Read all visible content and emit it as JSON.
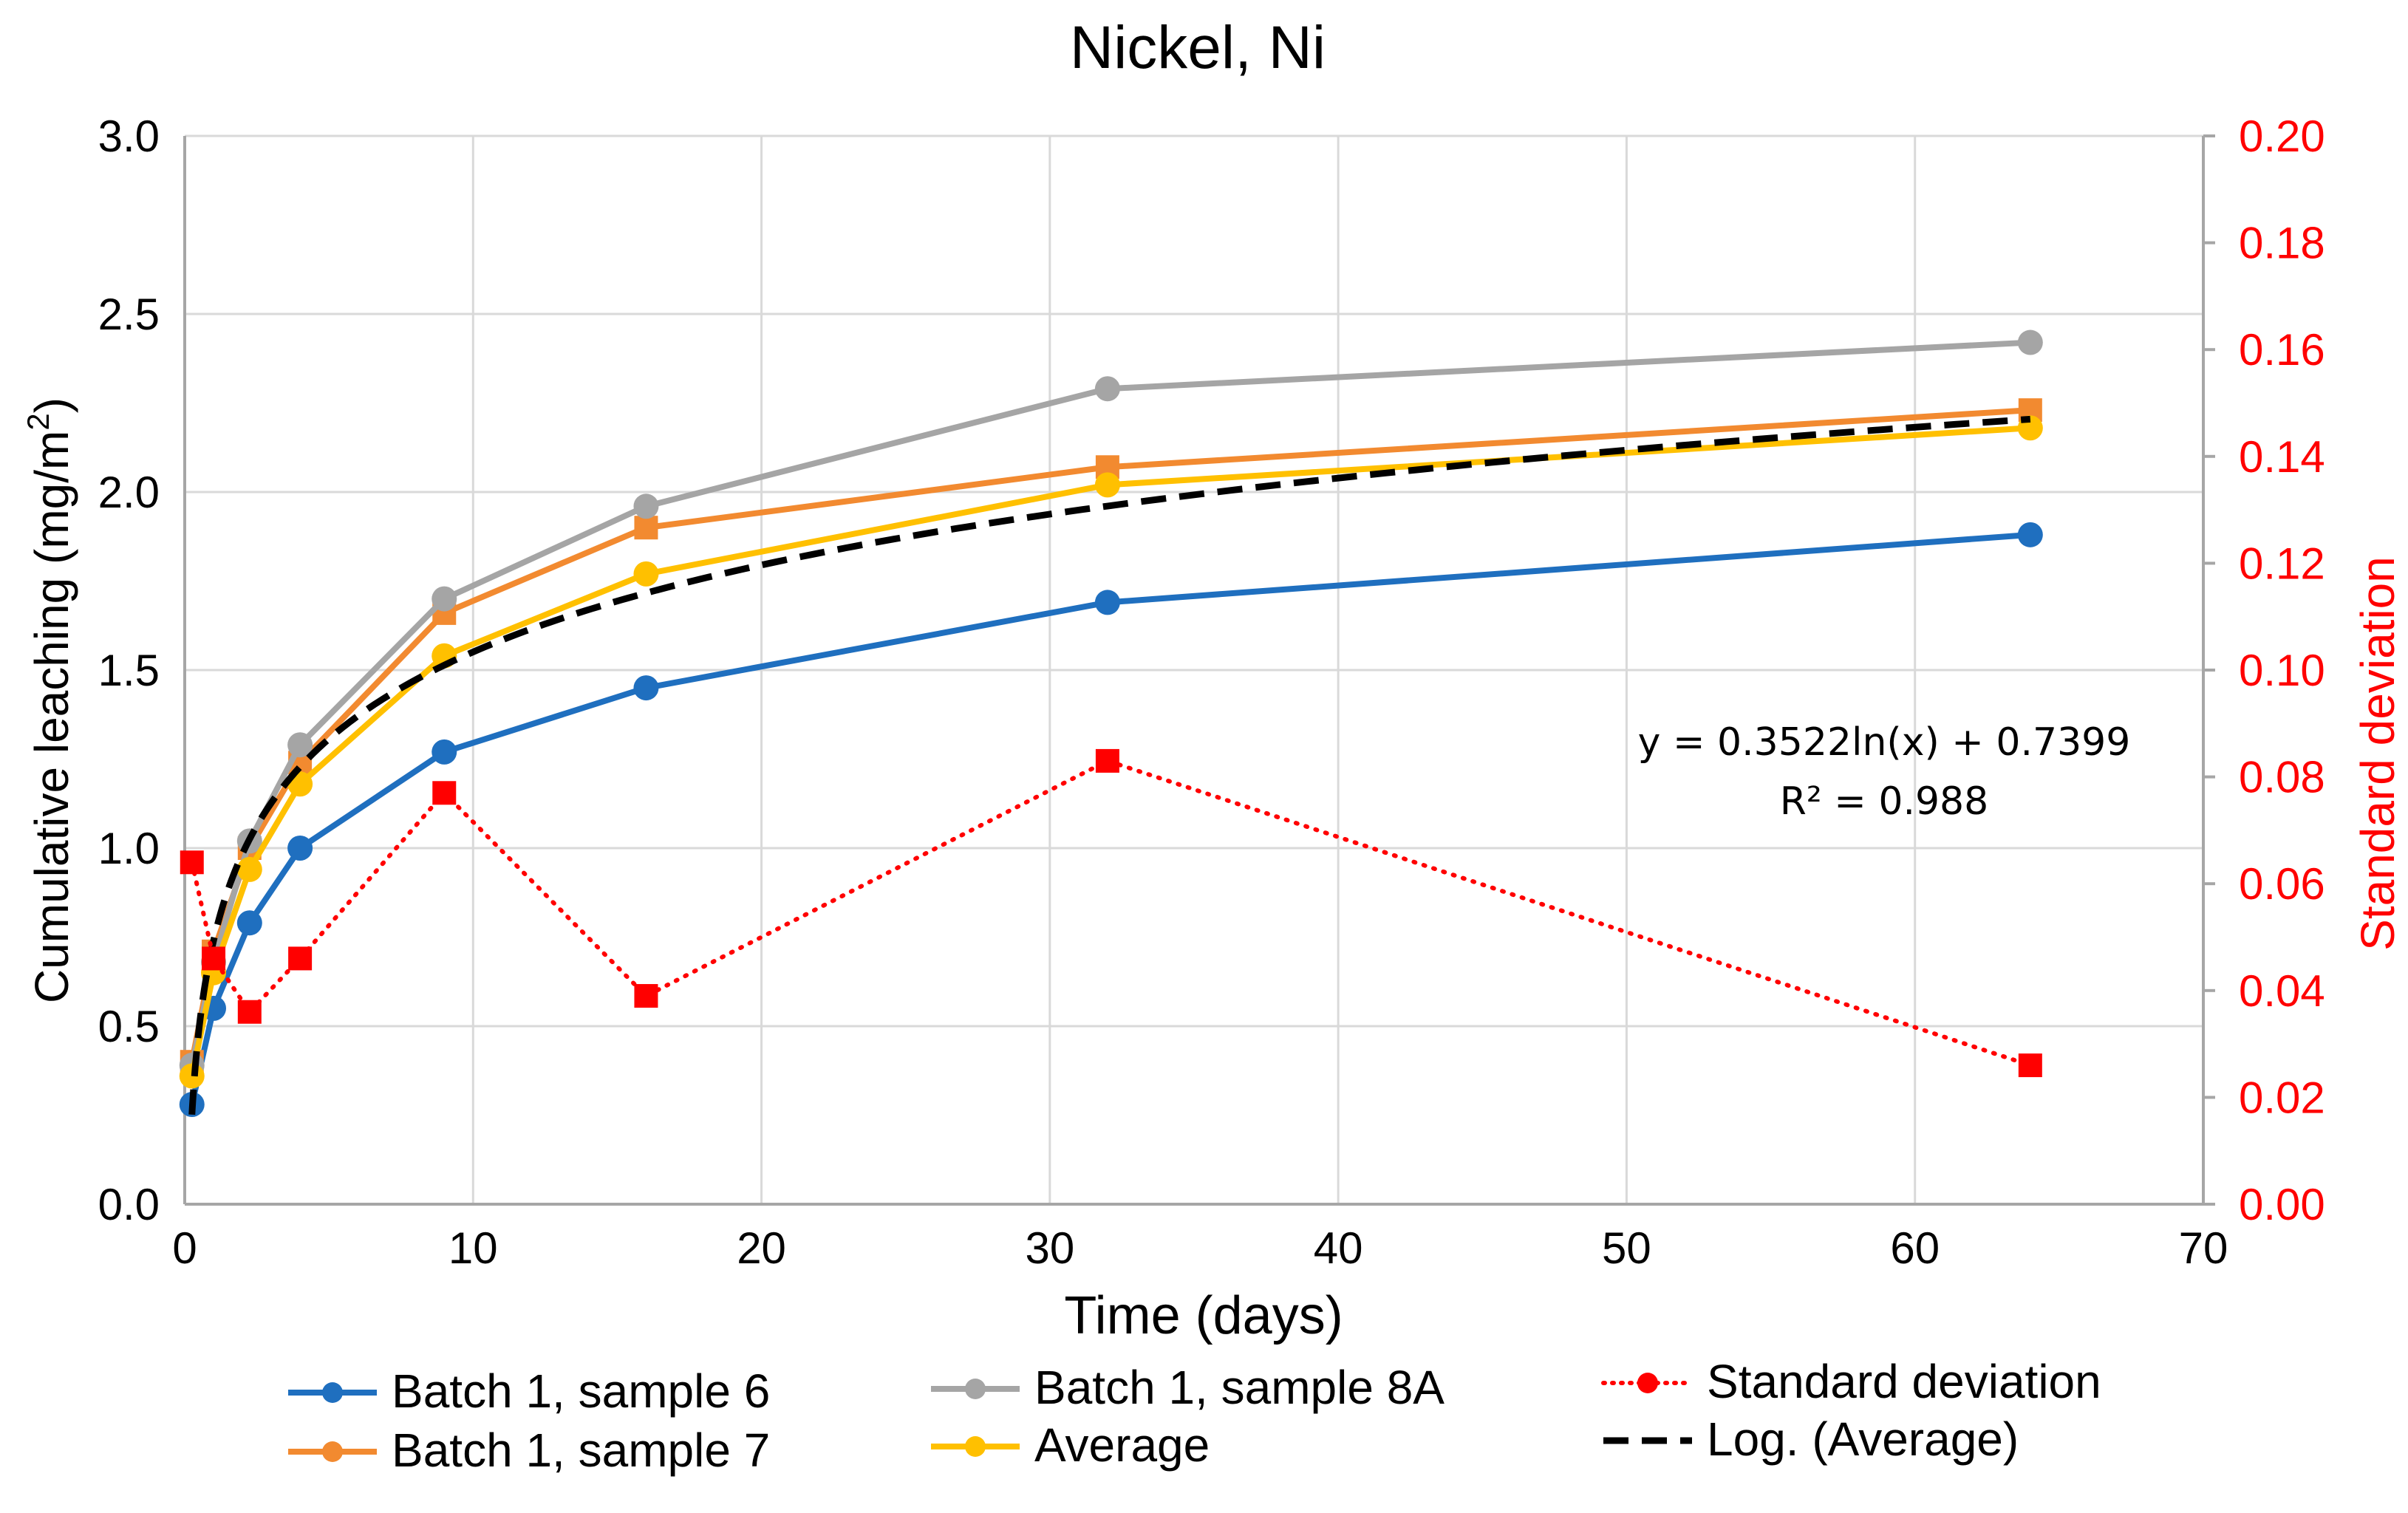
{
  "chart_data": {
    "type": "line",
    "title": "Nickel, Ni",
    "xlabel": "Time (days)",
    "ylabel": "Cumulative leaching (mg/m",
    "ylabel_sup": "2",
    "ylabel_close": ")",
    "y2label": "Standard deviation",
    "xlim": [
      0,
      70
    ],
    "ylim": [
      0,
      3
    ],
    "y2lim": [
      0,
      0.2
    ],
    "xticks": [
      "0",
      "10",
      "20",
      "30",
      "40",
      "50",
      "60",
      "70"
    ],
    "yticks": [
      "0.0",
      "0.5",
      "1.0",
      "1.5",
      "2.0",
      "2.5",
      "3.0"
    ],
    "y2ticks": [
      "0.00",
      "0.02",
      "0.04",
      "0.06",
      "0.08",
      "0.10",
      "0.12",
      "0.14",
      "0.16",
      "0.18",
      "0.20"
    ],
    "grid": true,
    "series": [
      {
        "name": "Batch 1, sample 6",
        "color": "#1f6fbf",
        "marker": "circle",
        "line": "solid",
        "axis": "left",
        "x": [
          0.25,
          1,
          2.25,
          4,
          9,
          16,
          32,
          64
        ],
        "y": [
          0.28,
          0.55,
          0.79,
          1.0,
          1.27,
          1.45,
          1.69,
          1.88
        ]
      },
      {
        "name": "Batch 1, sample 7",
        "color": "#f28a30",
        "marker": "square",
        "line": "solid",
        "axis": "left",
        "x": [
          0.25,
          1,
          2.25,
          4,
          9,
          16,
          32,
          64
        ],
        "y": [
          0.4,
          0.71,
          1.0,
          1.24,
          1.66,
          1.9,
          2.07,
          2.23
        ]
      },
      {
        "name": "Batch 1, sample 8A",
        "color": "#a5a5a5",
        "marker": "circle",
        "line": "solid",
        "axis": "left",
        "x": [
          0.25,
          1,
          2.25,
          4,
          9,
          16,
          32,
          64
        ],
        "y": [
          0.39,
          0.68,
          1.02,
          1.29,
          1.7,
          1.96,
          2.29,
          2.42
        ]
      },
      {
        "name": "Average",
        "color": "#ffc000",
        "marker": "circle",
        "line": "solid",
        "axis": "left",
        "x": [
          0.25,
          1,
          2.25,
          4,
          9,
          16,
          32,
          64
        ],
        "y": [
          0.36,
          0.65,
          0.94,
          1.18,
          1.54,
          1.77,
          2.02,
          2.18
        ]
      },
      {
        "name": "Standard deviation",
        "color": "#ff0000",
        "marker": "square",
        "line": "dotted",
        "axis": "right",
        "x": [
          0.25,
          1,
          2.25,
          4,
          9,
          16,
          32,
          64
        ],
        "y": [
          0.064,
          0.046,
          0.036,
          0.046,
          0.077,
          0.039,
          0.083,
          0.026
        ]
      }
    ],
    "trendline": {
      "name": "Log. (Average)",
      "of": "Average",
      "type": "logarithmic",
      "a": 0.3522,
      "b": 0.7399,
      "x_from": 0.25,
      "x_to": 64,
      "color": "#000000",
      "equation": "y = 0.3522ln(x) + 0.7399",
      "r2": "R² = 0.988"
    },
    "legend": {
      "position": "bottom",
      "entries": [
        {
          "label": "Batch 1, sample 6",
          "color": "#1f6fbf",
          "style": "solid-marker"
        },
        {
          "label": "Batch 1, sample 8A",
          "color": "#a5a5a5",
          "style": "solid-marker"
        },
        {
          "label": "Standard deviation",
          "color": "#ff0000",
          "style": "dotted-marker"
        },
        {
          "label": "Batch 1, sample 7",
          "color": "#f28a30",
          "style": "solid-marker"
        },
        {
          "label": "Average",
          "color": "#ffc000",
          "style": "solid-marker"
        },
        {
          "label": "Log. (Average)",
          "color": "#000000",
          "style": "dashed"
        }
      ]
    }
  }
}
